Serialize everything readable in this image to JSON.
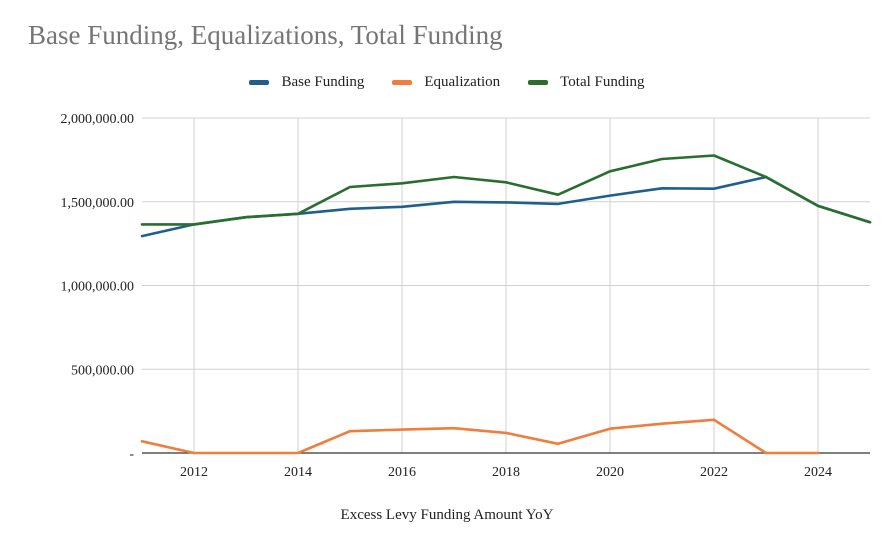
{
  "chart_data": {
    "type": "line",
    "title": "Base Funding, Equalizations, Total Funding",
    "xlabel": "Excess Levy Funding Amount YoY",
    "ylabel": "",
    "x": [
      2011,
      2012,
      2013,
      2014,
      2015,
      2016,
      2017,
      2018,
      2019,
      2020,
      2021,
      2022,
      2023,
      2024,
      2025
    ],
    "xlim": [
      2011,
      2025
    ],
    "ylim": [
      0,
      2000000
    ],
    "x_ticks": [
      2012,
      2014,
      2016,
      2018,
      2020,
      2022,
      2024
    ],
    "x_tick_labels": [
      "2012",
      "2014",
      "2016",
      "2018",
      "2020",
      "2022",
      "2024"
    ],
    "y_ticks": [
      0,
      500000,
      1000000,
      1500000,
      2000000
    ],
    "y_tick_labels": [
      "-",
      "500,000.00",
      "1,000,000.00",
      "1,500,000.00",
      "2,000,000.00"
    ],
    "grid": true,
    "legend_position": "top",
    "series": [
      {
        "name": "Base Funding",
        "color": "#1f5f8b",
        "values": [
          1295000,
          1365000,
          1408000,
          1428000,
          1458000,
          1470000,
          1500000,
          1496000,
          1487000,
          1537000,
          1580000,
          1578000,
          1648000,
          1475000,
          1378000
        ]
      },
      {
        "name": "Equalization",
        "color": "#ef7d3c",
        "values": [
          70000,
          0,
          0,
          0,
          130000,
          140000,
          148000,
          120000,
          55000,
          145000,
          175000,
          198000,
          0,
          0,
          null
        ]
      },
      {
        "name": "Total Funding",
        "color": "#2a6e2f",
        "values": [
          1365000,
          1365000,
          1408000,
          1428000,
          1588000,
          1610000,
          1648000,
          1616000,
          1542000,
          1682000,
          1755000,
          1776000,
          1648000,
          1475000,
          1378000
        ]
      }
    ]
  }
}
